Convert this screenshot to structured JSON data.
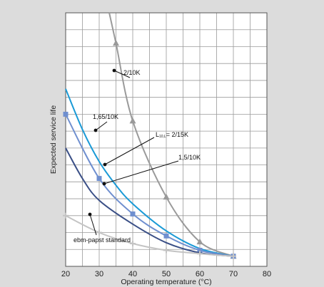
{
  "chart_data": {
    "type": "line",
    "title": "",
    "xlabel": "Operating temperature (°C)",
    "ylabel": "Expected service life",
    "xlim": [
      20,
      80
    ],
    "ylim": [
      0,
      15
    ],
    "x_ticks": [
      "20",
      "30",
      "40",
      "50",
      "60",
      "70",
      "80"
    ],
    "grid": true,
    "legend": "none",
    "series": [
      {
        "color": "#9a9a9a",
        "marker": "triangle",
        "x": [
          33,
          35,
          40,
          50,
          60,
          70
        ],
        "y": [
          15,
          13.2,
          8.6,
          4.1,
          1.45,
          0.6
        ]
      },
      {
        "color": "#1a9ad6",
        "marker": "none",
        "x": [
          20,
          25,
          30,
          35,
          40,
          50,
          60,
          70
        ],
        "y": [
          10.5,
          8.1,
          6.2,
          4.8,
          3.7,
          2.1,
          1.05,
          0.6
        ]
      },
      {
        "color": "#6f8fcf",
        "marker": "square",
        "x": [
          20,
          30,
          40,
          50,
          60,
          70
        ],
        "y": [
          9.0,
          5.2,
          3.1,
          1.8,
          0.95,
          0.6
        ]
      },
      {
        "color": "#3a4f86",
        "marker": "none",
        "x": [
          20,
          25,
          30,
          40,
          50,
          60,
          70
        ],
        "y": [
          7.0,
          5.2,
          3.9,
          2.5,
          1.4,
          0.8,
          0.6
        ]
      },
      {
        "color": "#c4c4c4",
        "marker": "cross",
        "x": [
          20,
          30,
          40,
          50,
          60,
          70
        ],
        "y": [
          3.0,
          2.0,
          1.35,
          0.95,
          0.75,
          0.6
        ]
      }
    ],
    "annotations": [
      {
        "text": "2/10K",
        "sub": "",
        "rest": ""
      },
      {
        "text": "1,65/10K",
        "sub": "",
        "rest": ""
      },
      {
        "text": "L",
        "sub": "10,L",
        "rest": "= 2/15K"
      },
      {
        "text": "1,5/10K",
        "sub": "",
        "rest": ""
      },
      {
        "text": "ebm-papst standard",
        "sub": "",
        "rest": ""
      }
    ]
  }
}
